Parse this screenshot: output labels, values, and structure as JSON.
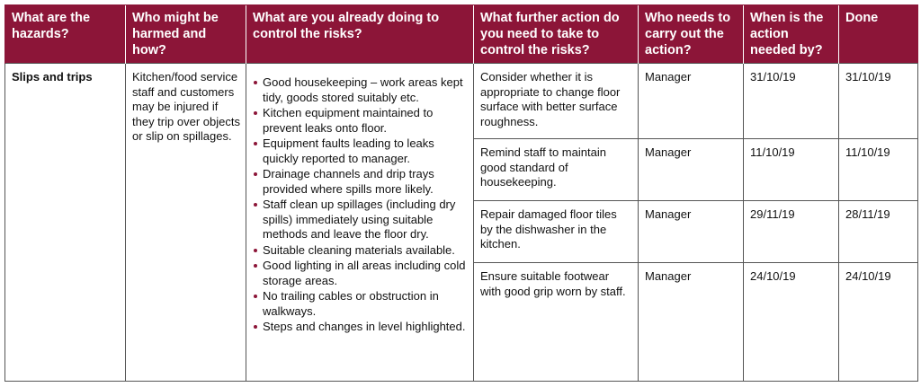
{
  "headers": [
    "What are the hazards?",
    "Who might be harmed and how?",
    "What are you already doing to control the risks?",
    "What further action do you need to take to control the risks?",
    "Who needs to carry out the action?",
    "When is the action needed by?",
    "Done"
  ],
  "hazard": "Slips and trips",
  "harmed": "Kitchen/food service staff and customers may be injured if they trip over objects or slip on spillages.",
  "controls": [
    "Good housekeeping – work areas kept tidy, goods stored suitably etc.",
    "Kitchen equipment maintained to prevent leaks onto floor.",
    "Equipment faults leading to leaks quickly reported to manager.",
    "Drainage channels and drip trays provided where spills more likely.",
    "Staff clean up spillages (including dry spills) immediately using suitable methods and leave the floor dry.",
    "Suitable cleaning materials available.",
    "Good lighting in all areas including cold storage areas.",
    "No trailing cables or obstruction in walkways.",
    "Steps and changes in level highlighted."
  ],
  "actions": [
    {
      "action": "Consider whether it is appropriate to change floor surface with better surface roughness.",
      "who": "Manager",
      "when": "31/10/19",
      "done": "31/10/19"
    },
    {
      "action": "Remind staff to maintain good standard of housekeeping.",
      "who": "Manager",
      "when": "11/10/19",
      "done": "11/10/19"
    },
    {
      "action": "Repair damaged floor tiles by the dishwasher in the kitchen.",
      "who": "Manager",
      "when": "29/11/19",
      "done": "28/11/19"
    },
    {
      "action": "Ensure suitable footwear with good grip worn by staff.",
      "who": "Manager",
      "when": "24/10/19",
      "done": "24/10/19"
    }
  ],
  "colors": {
    "header_bg": "#8c1538",
    "header_text": "#ffffff",
    "bullet": "#8c1538",
    "border": "#555555"
  }
}
